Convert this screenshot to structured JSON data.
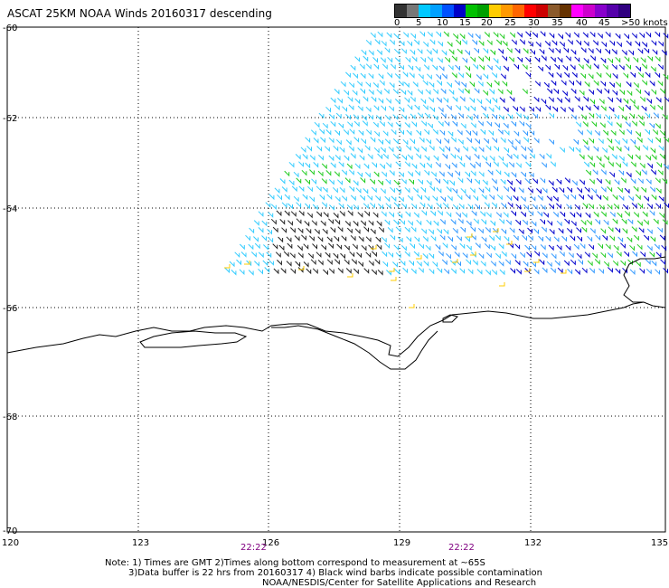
{
  "title": "ASCAT 25KM NOAA Winds 20160317 descending",
  "legend": {
    "colors": [
      "#333333",
      "#777777",
      "#00c8ff",
      "#00a0ff",
      "#0050ff",
      "#0000c8",
      "#00c000",
      "#00a000",
      "#ffcc00",
      "#ff9900",
      "#ff6600",
      "#ff0000",
      "#cc0000",
      "#8b5a2b",
      "#663300",
      "#ff00ff",
      "#cc00cc",
      "#8800cc",
      "#5500aa",
      "#300080"
    ],
    "labels": [
      "0",
      "5",
      "10",
      "15",
      "20",
      "25",
      "30",
      "35",
      "40",
      "45",
      ">50 knots"
    ]
  },
  "axes": {
    "x_ticks": [
      "120",
      "123",
      "126",
      "129",
      "132",
      "135"
    ],
    "y_ticks": [
      "-60",
      "-62",
      "-64",
      "-66",
      "-68",
      "-70"
    ]
  },
  "time_labels": [
    "22:22",
    "22:22"
  ],
  "notes": [
    "Note: 1) Times are GMT 2)Times along bottom correspond to measurement at ~65S",
    "3)Data buffer is 22 hrs from 20160317 4) Black wind barbs indicate possible contamination",
    "NOAA/NESDIS/Center for Satellite Applications and Research"
  ],
  "barb_colors": {
    "dark": "#222222",
    "cyan": "#33ccff",
    "lightblue": "#3399ff",
    "blue": "#0000cc",
    "green": "#22cc22",
    "yellow": "#ffcc00"
  }
}
